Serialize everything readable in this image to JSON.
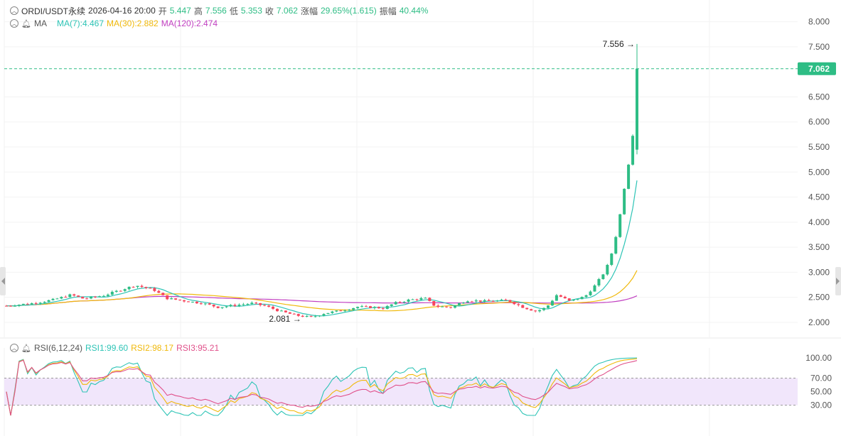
{
  "header": {
    "symbol": "ORDI/USDT永续",
    "datetime": "2026-04-16 20:00",
    "open_label": "开",
    "open": "5.447",
    "high_label": "高",
    "high": "7.556",
    "low_label": "低",
    "low": "5.353",
    "close_label": "收",
    "close": "7.062",
    "change_label": "涨幅",
    "change": "29.65%(1.615)",
    "amplitude_label": "振幅",
    "amplitude": "40.44%"
  },
  "ma_row": {
    "name": "MA",
    "ma7": "MA(7):4.467",
    "ma30": "MA(30):2.882",
    "ma120": "MA(120):2.474"
  },
  "rsi_row": {
    "name": "RSI(6,12,24)",
    "rsi1": "RSI1:99.60",
    "rsi2": "RSI2:98.17",
    "rsi3": "RSI3:95.21"
  },
  "colors": {
    "up": "#2ebd85",
    "down": "#f6465d",
    "ma7": "#2ec4b6",
    "ma30": "#f0b90b",
    "ma120": "#c13fc1",
    "rsi1": "#2ec4b6",
    "rsi2": "#f0b90b",
    "rsi3": "#e0508a",
    "rsi_band": "#f1e6fb",
    "last_price_tag": "#2ebd85"
  },
  "chart_data": [
    {
      "type": "candlestick",
      "y_ticks": [
        "8.000",
        "7.500",
        "7.062",
        "6.500",
        "6.000",
        "5.500",
        "5.000",
        "4.500",
        "4.000",
        "3.500",
        "3.000",
        "2.500",
        "2.000"
      ],
      "ylim": [
        1.9,
        8.15
      ],
      "last_price": 7.062,
      "last_price_label": "7.062",
      "max_label": "7.556",
      "min_label": "2.081",
      "max_value": 7.556,
      "min_value": 2.081,
      "candle_count": 150,
      "price_path": [
        [
          0,
          2.33
        ],
        [
          10,
          2.38
        ],
        [
          18,
          2.45
        ],
        [
          25,
          2.55
        ],
        [
          30,
          2.47
        ],
        [
          38,
          2.54
        ],
        [
          45,
          2.66
        ],
        [
          50,
          2.74
        ],
        [
          57,
          2.65
        ],
        [
          62,
          2.48
        ],
        [
          70,
          2.42
        ],
        [
          76,
          2.38
        ],
        [
          82,
          2.3
        ],
        [
          88,
          2.34
        ],
        [
          95,
          2.38
        ],
        [
          100,
          2.33
        ],
        [
          106,
          2.22
        ],
        [
          112,
          2.14
        ],
        [
          118,
          2.1
        ],
        [
          123,
          2.18
        ],
        [
          130,
          2.24
        ],
        [
          136,
          2.31
        ],
        [
          142,
          2.3
        ],
        [
          146,
          2.28
        ],
        [
          150,
          2.38
        ],
        [
          156,
          2.45
        ],
        [
          162,
          2.48
        ],
        [
          166,
          2.32
        ],
        [
          172,
          2.3
        ],
        [
          178,
          2.44
        ],
        [
          186,
          2.42
        ],
        [
          194,
          2.44
        ],
        [
          200,
          2.3
        ],
        [
          205,
          2.22
        ],
        [
          209,
          2.3
        ],
        [
          213,
          2.55
        ],
        [
          218,
          2.42
        ],
        [
          224,
          2.52
        ],
        [
          228,
          2.75
        ],
        [
          232,
          3.05
        ],
        [
          235,
          3.5
        ],
        [
          238,
          4.3
        ],
        [
          240,
          5.0
        ],
        [
          242,
          5.45
        ],
        [
          244,
          7.062
        ]
      ],
      "spike": {
        "open": 5.447,
        "high": 7.556,
        "low": 5.353,
        "close": 7.062
      }
    },
    {
      "type": "line",
      "title": "RSI(6,12,24)",
      "y_ticks": [
        "100.00",
        "70.00",
        "50.00",
        "30.00"
      ],
      "ylim": [
        15,
        105
      ],
      "band": [
        30,
        70
      ],
      "series": [
        {
          "name": "RSI1",
          "last": 99.6
        },
        {
          "name": "RSI2",
          "last": 98.17
        },
        {
          "name": "RSI3",
          "last": 95.21
        }
      ]
    }
  ]
}
